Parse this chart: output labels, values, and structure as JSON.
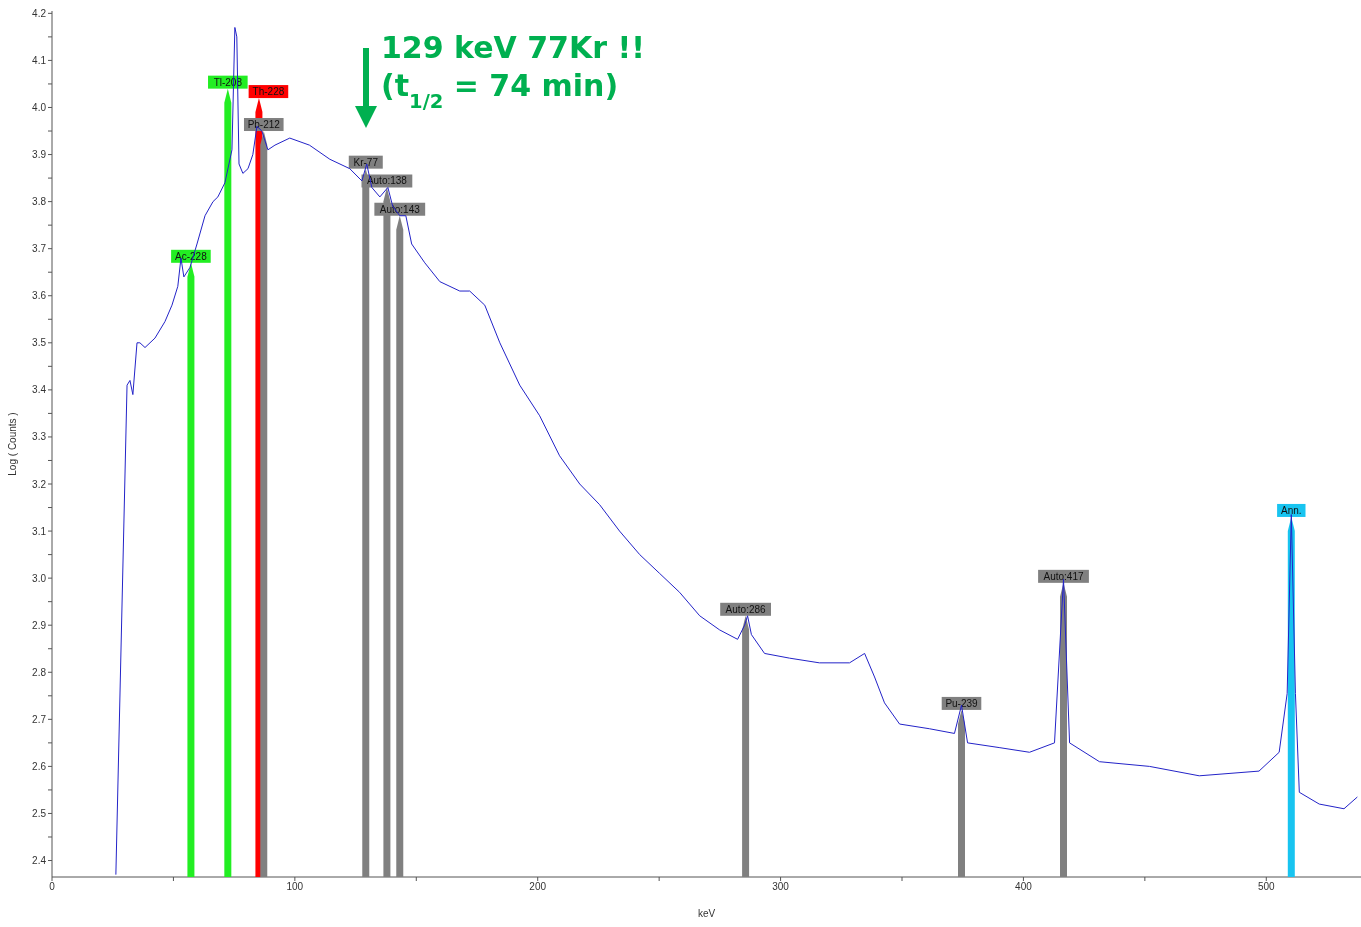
{
  "chart_data": {
    "type": "line",
    "xlabel": "keV",
    "ylabel": "Log ( Counts )",
    "xlim": [
      0,
      539
    ],
    "ylim": [
      2.365,
      4.205
    ],
    "xticks": [
      0,
      {
        "value": 50,
        "label": null
      },
      100,
      {
        "value": 150,
        "label": null
      },
      200,
      {
        "value": 250,
        "label": null
      },
      300,
      {
        "value": 350,
        "label": null
      },
      400,
      {
        "value": 450,
        "label": null
      },
      500
    ],
    "yticks": [
      2.4,
      {
        "value": 2.45,
        "label": null
      },
      2.5,
      {
        "value": 2.55,
        "label": null
      },
      2.6,
      {
        "value": 2.65,
        "label": null
      },
      2.7,
      {
        "value": 2.75,
        "label": null
      },
      2.8,
      {
        "value": 2.85,
        "label": null
      },
      2.9,
      {
        "value": 2.95,
        "label": null
      },
      {
        "value": 3,
        "label": "3.0"
      },
      {
        "value": 3.05,
        "label": null
      },
      3.1,
      {
        "value": 3.15,
        "label": null
      },
      3.2,
      {
        "value": 3.25,
        "label": null
      },
      3.3,
      {
        "value": 3.35,
        "label": null
      },
      3.4,
      {
        "value": 3.45,
        "label": null
      },
      3.5,
      {
        "value": 3.55,
        "label": null
      },
      3.6,
      {
        "value": 3.65,
        "label": null
      },
      3.7,
      {
        "value": 3.75,
        "label": null
      },
      3.8,
      {
        "value": 3.85,
        "label": null
      },
      3.9,
      {
        "value": 3.95,
        "label": null
      },
      {
        "value": 4,
        "label": "4.0"
      },
      {
        "value": 4.05,
        "label": null
      },
      4.1,
      {
        "value": 4.15,
        "label": null
      },
      4.2
    ],
    "marker": "none",
    "series": [
      {
        "color": "#2323c8",
        "x": [
          26.3,
          30.9,
          32.1,
          33.3,
          35,
          36.2,
          38.3,
          42.4,
          46.5,
          49.4,
          51.8,
          53.1,
          54.3,
          56.8,
          59.7,
          63,
          66.3,
          68.3,
          71.2,
          74.1,
          75.3,
          76.1,
          77,
          78.6,
          80.7,
          82.7,
          84.4,
          86.4,
          88.9,
          91.8,
          97.9,
          106,
          114.4,
          122.6,
          127.6,
          129.6,
          131.7,
          135,
          138.3,
          140.3,
          143.2,
          145.7,
          148.1,
          153.5,
          159.7,
          167.9,
          172,
          178.2,
          184.4,
          192.6,
          200.8,
          209,
          217.3,
          225.5,
          233.7,
          242,
          250.2,
          258.4,
          266.7,
          274.9,
          282.3,
          285.2,
          286.4,
          288,
          293.4,
          303.7,
          316,
          328.4,
          334.6,
          338.7,
          342.8,
          349,
          361.3,
          371.6,
          374.5,
          377,
          390,
          402.5,
          412.8,
          416.5,
          419,
          431.3,
          451.9,
          472.4,
          497,
          505.3,
          508.6,
          510.3,
          512,
          513.6,
          521.8,
          532,
          537.5
        ],
        "values": [
          2.37,
          3.41,
          3.42,
          3.39,
          3.5,
          3.5,
          3.49,
          3.51,
          3.545,
          3.58,
          3.62,
          3.68,
          3.64,
          3.66,
          3.71,
          3.77,
          3.8,
          3.81,
          3.84,
          3.91,
          4.17,
          4.15,
          3.88,
          3.86,
          3.87,
          3.9,
          3.96,
          3.95,
          3.91,
          3.92,
          3.935,
          3.92,
          3.89,
          3.87,
          3.844,
          3.88,
          3.83,
          3.81,
          3.83,
          3.79,
          3.77,
          3.77,
          3.71,
          3.67,
          3.63,
          3.61,
          3.61,
          3.58,
          3.5,
          3.41,
          3.345,
          3.26,
          3.2,
          3.156,
          3.1,
          3.05,
          3.01,
          2.97,
          2.92,
          2.89,
          2.87,
          2.9,
          2.92,
          2.88,
          2.84,
          2.83,
          2.82,
          2.82,
          2.84,
          2.79,
          2.735,
          2.69,
          2.68,
          2.67,
          2.73,
          2.65,
          2.64,
          2.63,
          2.65,
          2.998,
          2.65,
          2.61,
          2.6,
          2.58,
          2.59,
          2.63,
          2.755,
          3.135,
          2.755,
          2.545,
          2.52,
          2.51,
          2.535
        ]
      },
      {
        "type": "bar",
        "x": [
          57.2,
          72.4,
          85.2,
          87.2,
          129.2,
          137.9,
          143.2,
          285.6,
          374.5,
          416.5,
          510.3
        ],
        "values": [
          3.67,
          4.04,
          4.02,
          3.95,
          3.87,
          3.83,
          3.77,
          2.92,
          2.72,
          2.99,
          3.13
        ],
        "colors": [
          "#22ee22",
          "#22ee22",
          "#ff0000",
          "#808080",
          "#808080",
          "#808080",
          "#808080",
          "#808080",
          "#808080",
          "#808080",
          "#18c4f0"
        ]
      }
    ],
    "annotations": [
      "129 keV 77Kr !!\n(t$_{1/2}$ = 74 min)",
      {
        "text": "Ac-228",
        "x": 57.2,
        "y": 3.67
      },
      {
        "text": "Tl-208",
        "x": 72.4,
        "y": 4.04
      },
      {
        "text": "Th-228",
        "x": 85.2,
        "y": 4.02
      },
      {
        "text": "Pb-212",
        "x": 87.2,
        "y": 3.95
      },
      {
        "text": "Kr-77",
        "x": 129.2,
        "y": 3.87
      },
      {
        "text": "Auto:138",
        "x": 137.9,
        "y": 3.83
      },
      {
        "text": "Auto:143",
        "x": 143.2,
        "y": 3.77
      },
      {
        "text": "Auto:286",
        "x": 285.6,
        "y": 2.92
      },
      {
        "text": "Pu-239",
        "x": 374.5,
        "y": 2.72
      },
      {
        "text": "Auto:417",
        "x": 416.5,
        "y": 2.99
      },
      {
        "text": "Ann.",
        "x": 510.3,
        "y": 3.13
      }
    ]
  }
}
